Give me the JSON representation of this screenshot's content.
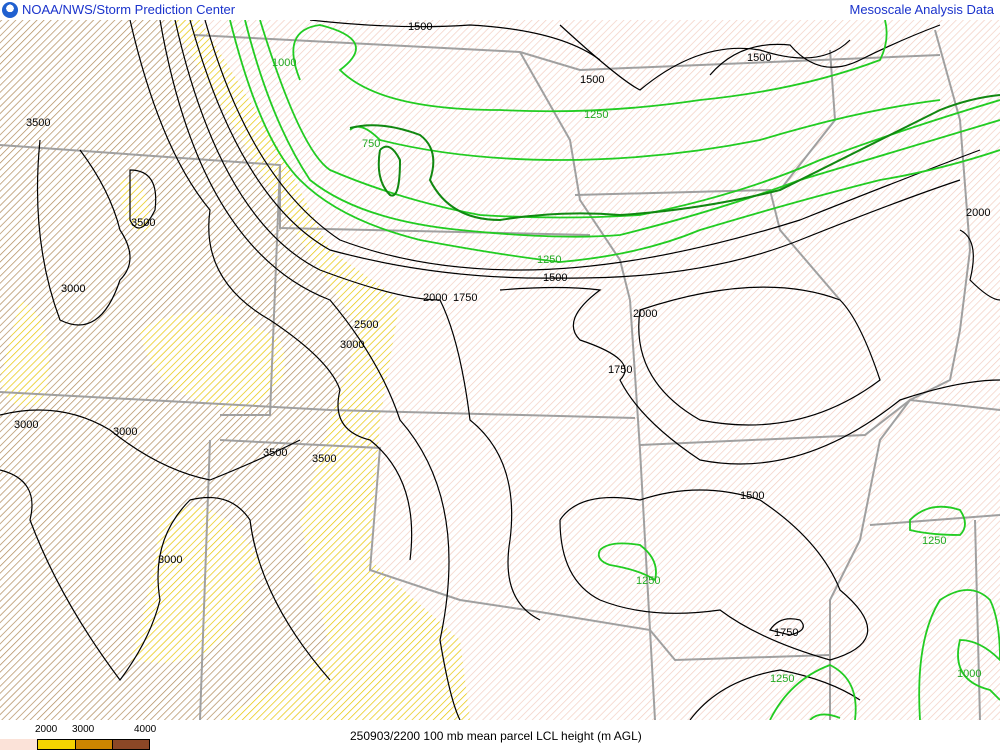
{
  "header": {
    "left_title": "NOAA/NWS/Storm Prediction Center",
    "right_title": "Mesoscale Analysis Data",
    "logo": "noaa-logo"
  },
  "legend": {
    "ticks": [
      "2000",
      "3000",
      "4000"
    ],
    "colors": {
      "below_2000": "#fbe2d8",
      "2000_3000": "#f5d400",
      "3000_4000": "#cc8500",
      "above_4000": "#8b4726"
    }
  },
  "caption": "250903/2200 100 mb mean parcel LCL height (m AGL)",
  "colors": {
    "contour_black": "#000000",
    "contour_green": "#22cc22",
    "contour_darkgreen": "#118811",
    "borders": "#a0a0a0",
    "title": "#1a33cc"
  },
  "contour_labels": {
    "black": [
      "1500",
      "1500",
      "1500",
      "3500",
      "3500",
      "3000",
      "2500",
      "3000",
      "2000",
      "1750",
      "1500",
      "2000",
      "1750",
      "3000",
      "3000",
      "3500",
      "3500",
      "3000",
      "1500",
      "1750",
      "2000"
    ],
    "green": [
      "1000",
      "750",
      "1250",
      "1250",
      "1250",
      "1250",
      "1250",
      "1000"
    ]
  }
}
